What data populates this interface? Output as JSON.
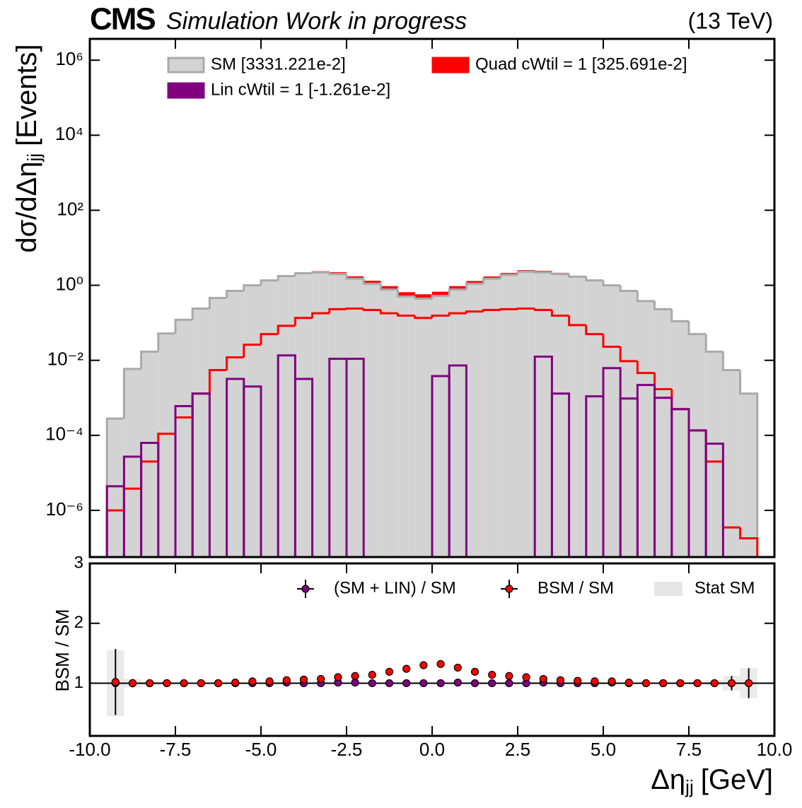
{
  "chart_data": [
    {
      "type": "histogram",
      "experiment": "CMS",
      "status": "Simulation Work in progress",
      "energy": "(13 TeV)",
      "ylabel": {
        "text": "dσ/dΔη",
        "sub": "jj",
        "unit": "[Events]"
      },
      "bins": [
        -9.5,
        -9,
        -8.5,
        -8,
        -7.5,
        -7,
        -6.5,
        -6,
        -5.5,
        -5,
        -4.5,
        -4,
        -3.5,
        -3,
        -2.5,
        -2,
        -1.5,
        -1,
        -0.5,
        0,
        0.5,
        1,
        1.5,
        2,
        2.5,
        3,
        3.5,
        4,
        4.5,
        5,
        5.5,
        6,
        6.5,
        7,
        7.5,
        8,
        8.5,
        9,
        9.5
      ],
      "log_y": true,
      "xlim": [
        -10,
        10
      ],
      "ylim": [
        5.7e-08,
        3700000.0
      ],
      "yticks": [
        {
          "value": 1000000,
          "label": "10⁶"
        },
        {
          "value": 10000,
          "label": "10⁴"
        },
        {
          "value": 100,
          "label": "10²"
        },
        {
          "value": 1,
          "label": "10⁰"
        },
        {
          "value": 0.01,
          "label": "10⁻²"
        },
        {
          "value": 0.0001,
          "label": "10⁻⁴"
        },
        {
          "value": 1e-06,
          "label": "10⁻⁶"
        }
      ],
      "series": [
        {
          "name": "SM [3331.221e-2]",
          "color": "#d3d3d3",
          "edgecolor": "#a9a9a9",
          "values": [
            0.00028,
            0.0059,
            0.017,
            0.052,
            0.12,
            0.24,
            0.46,
            0.71,
            1.0,
            1.35,
            1.76,
            2.1,
            2.2,
            2.0,
            1.5,
            1.1,
            0.77,
            0.5,
            0.44,
            0.52,
            0.77,
            1.1,
            1.5,
            1.9,
            2.3,
            2.2,
            2.0,
            1.7,
            1.35,
            1.0,
            0.71,
            0.38,
            0.23,
            0.11,
            0.05,
            0.017,
            0.0055,
            0.0013
          ]
        },
        {
          "name": "Lin cWtil = 1 [-1.261e-2]",
          "color": "#800080",
          "values": [
            4.4e-06,
            2.7e-05,
            6.3e-05,
            null,
            0.0006,
            0.0013,
            null,
            0.0032,
            0.002,
            null,
            0.0135,
            0.0032,
            null,
            0.011,
            0.011,
            null,
            null,
            null,
            null,
            0.0038,
            0.0073,
            null,
            null,
            null,
            null,
            0.0125,
            0.0013,
            null,
            0.0011,
            0.0062,
            0.00096,
            0.0022,
            0.001,
            0.0005,
            0.000135,
            6e-05,
            null,
            null
          ]
        },
        {
          "name": "Quad cWtil = 1 [325.691e-2]",
          "color": "#ff0000",
          "stacked": true,
          "values": [
            1e-06,
            3.8e-06,
            2e-05,
            0.00011,
            0.0003,
            0.0013,
            0.0055,
            0.012,
            0.026,
            0.05,
            0.083,
            0.135,
            0.18,
            0.23,
            0.24,
            0.22,
            0.18,
            0.155,
            0.135,
            0.155,
            0.18,
            0.2,
            0.22,
            0.23,
            0.24,
            0.22,
            0.155,
            0.087,
            0.05,
            0.023,
            0.0095,
            0.0046,
            0.0017,
            0.0005,
            0.000135,
            2e-05,
            3.5e-07,
            1.8e-07
          ]
        }
      ]
    },
    {
      "type": "errorbar",
      "xlabel": {
        "text": "Δη",
        "sub": "jj",
        "unit": "[GeV]"
      },
      "ylabel": "BSM / SM",
      "x": [
        -9.25,
        -8.75,
        -8.25,
        -7.75,
        -7.25,
        -6.75,
        -6.25,
        -5.75,
        -5.25,
        -4.75,
        -4.25,
        -3.75,
        -3.25,
        -2.75,
        -2.25,
        -1.75,
        -1.25,
        -0.75,
        -0.25,
        0.25,
        0.75,
        1.25,
        1.75,
        2.25,
        2.75,
        3.25,
        3.75,
        4.25,
        4.75,
        5.25,
        5.75,
        6.25,
        6.75,
        7.25,
        7.75,
        8.25,
        8.75,
        9.25
      ],
      "xlim": [
        -10,
        10
      ],
      "xticks": [
        {
          "value": -10,
          "label": "-10.0"
        },
        -7.5,
        {
          "value": -5,
          "label": "-5.0"
        },
        -2.5,
        {
          "value": 0,
          "label": "0.0"
        },
        2.5,
        {
          "value": 5,
          "label": "5.0"
        },
        7.5,
        {
          "value": 10,
          "label": "10.0"
        }
      ],
      "ylim": [
        0.12,
        3
      ],
      "yticks": [
        1,
        2,
        3
      ],
      "hline": 1,
      "series": [
        {
          "name": "(SM + LIN) / SM",
          "color": "#800080",
          "values": [
            1,
            1,
            1,
            1,
            1,
            1,
            1,
            1,
            1,
            1,
            1.01,
            1,
            1,
            1.01,
            1.01,
            1,
            1,
            1,
            1,
            1,
            1.01,
            1,
            1,
            1,
            1,
            1.01,
            1,
            1,
            1,
            1.01,
            1,
            1,
            1,
            1,
            1,
            1,
            1,
            1
          ]
        },
        {
          "name": "BSM / SM",
          "color": "#ff0000",
          "values": [
            1.02,
            1,
            1,
            1,
            1,
            1,
            1,
            1.01,
            1.03,
            1.03,
            1.05,
            1.06,
            1.07,
            1.1,
            1.12,
            1.14,
            1.19,
            1.24,
            1.3,
            1.32,
            1.26,
            1.19,
            1.14,
            1.12,
            1.1,
            1.07,
            1.05,
            1.04,
            1.03,
            1.03,
            1.01,
            1,
            1,
            1,
            1,
            1,
            1,
            1
          ],
          "errors": [
            0.55,
            0.07,
            0.03,
            0.02,
            0.01,
            0.01,
            0.01,
            0.01,
            0.01,
            0.01,
            0.01,
            0.01,
            0.01,
            0.01,
            0.01,
            0.01,
            0.01,
            0.01,
            0.01,
            0.01,
            0.01,
            0.01,
            0.01,
            0.01,
            0.01,
            0.01,
            0.01,
            0.01,
            0.01,
            0.01,
            0.01,
            0.01,
            0.01,
            0.01,
            0.02,
            0.05,
            0.12,
            0.25
          ]
        },
        {
          "name": "Stat SM",
          "color": "#e6e6e6",
          "band": true,
          "values": [
            1,
            1,
            1,
            1,
            1,
            1,
            1,
            1,
            1,
            1,
            1,
            1,
            1,
            1,
            1,
            1,
            1,
            1,
            1,
            1,
            1,
            1,
            1,
            1,
            1,
            1,
            1,
            1,
            1,
            1,
            1,
            1,
            1,
            1,
            1,
            1,
            1,
            1
          ],
          "errors": [
            0.55,
            0.07,
            0.03,
            0.02,
            0.01,
            0.01,
            0.01,
            0.01,
            0.01,
            0.01,
            0.01,
            0.01,
            0.01,
            0.01,
            0.01,
            0.01,
            0.01,
            0.01,
            0.01,
            0.01,
            0.01,
            0.01,
            0.01,
            0.01,
            0.01,
            0.01,
            0.01,
            0.01,
            0.01,
            0.01,
            0.01,
            0.01,
            0.01,
            0.01,
            0.02,
            0.05,
            0.12,
            0.25
          ]
        }
      ]
    }
  ]
}
